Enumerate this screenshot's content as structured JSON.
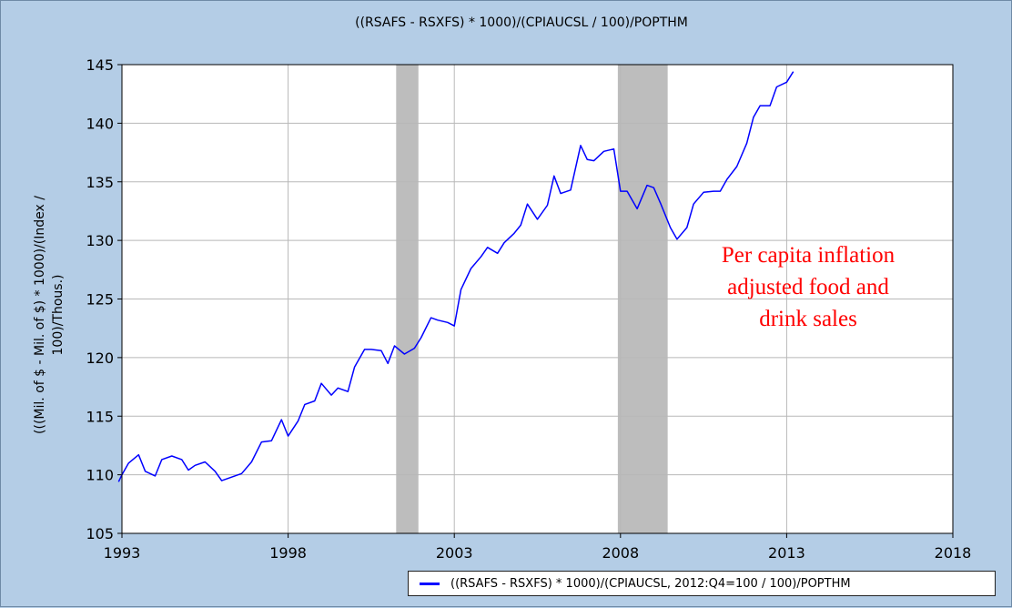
{
  "chart_data": {
    "type": "line",
    "title": "((RSAFS - RSXFS) * 1000)/(CPIAUCSL / 100)/POPTHM",
    "ylabel_line1": "(((Mil. of $ - Mil. of $) * 1000)/(Index /",
    "ylabel_line2": "100)/Thous.)",
    "xlabel": "",
    "xlim": [
      1993,
      2018
    ],
    "ylim": [
      105,
      145
    ],
    "x_ticks": [
      1993,
      1998,
      2003,
      2008,
      2013,
      2018
    ],
    "y_ticks": [
      105,
      110,
      115,
      120,
      125,
      130,
      135,
      140,
      145
    ],
    "grid": true,
    "legend_placement": "bottom-right",
    "annotation_lines": [
      "Per capita inflation",
      "adjusted food and",
      "drink sales"
    ],
    "recessions": [
      [
        2001.25,
        2001.92
      ],
      [
        2007.92,
        2009.42
      ]
    ],
    "series": [
      {
        "name": "((RSAFS - RSXFS) * 1000)/(CPIAUCSL, 2012:Q4=100 / 100)/POPTHM",
        "color": "#0000ff",
        "x": [
          1992.9,
          1993.0,
          1993.2,
          1993.5,
          1993.7,
          1994.0,
          1994.2,
          1994.5,
          1994.8,
          1995.0,
          1995.2,
          1995.5,
          1995.8,
          1996.0,
          1996.3,
          1996.6,
          1996.9,
          1997.2,
          1997.5,
          1997.8,
          1998.0,
          1998.3,
          1998.5,
          1998.8,
          1999.0,
          1999.3,
          1999.5,
          1999.8,
          2000.0,
          2000.3,
          2000.5,
          2000.8,
          2001.0,
          2001.2,
          2001.5,
          2001.8,
          2002.0,
          2002.3,
          2002.5,
          2002.8,
          2003.0,
          2003.2,
          2003.5,
          2003.8,
          2004.0,
          2004.3,
          2004.5,
          2004.8,
          2005.0,
          2005.2,
          2005.5,
          2005.8,
          2006.0,
          2006.2,
          2006.5,
          2006.8,
          2007.0,
          2007.2,
          2007.5,
          2007.8,
          2008.0,
          2008.2,
          2008.5,
          2008.8,
          2009.0,
          2009.2,
          2009.5,
          2009.7,
          2010.0,
          2010.2,
          2010.5,
          2010.8,
          2011.0,
          2011.2,
          2011.5,
          2011.8,
          2012.0,
          2012.2,
          2012.5,
          2012.7,
          2013.0,
          2013.2
        ],
        "values": [
          109.4,
          110.0,
          111.0,
          111.7,
          110.3,
          109.9,
          111.3,
          111.6,
          111.3,
          110.4,
          110.8,
          111.1,
          110.3,
          109.5,
          109.8,
          110.1,
          111.1,
          112.8,
          112.9,
          114.7,
          113.3,
          114.6,
          116.0,
          116.3,
          117.8,
          116.8,
          117.4,
          117.1,
          119.2,
          120.7,
          120.7,
          120.6,
          119.5,
          121.0,
          120.3,
          120.8,
          121.7,
          123.4,
          123.2,
          123.0,
          122.7,
          125.8,
          127.6,
          128.6,
          129.4,
          128.9,
          129.8,
          130.6,
          131.3,
          133.1,
          131.8,
          133.0,
          135.5,
          134.0,
          134.3,
          138.1,
          136.9,
          136.8,
          137.6,
          137.8,
          134.2,
          134.2,
          132.7,
          134.7,
          134.5,
          133.2,
          131.1,
          130.1,
          131.1,
          133.1,
          134.1,
          134.2,
          134.2,
          135.2,
          136.3,
          138.3,
          140.5,
          141.5,
          141.5,
          143.1,
          143.5,
          144.4
        ]
      }
    ]
  }
}
